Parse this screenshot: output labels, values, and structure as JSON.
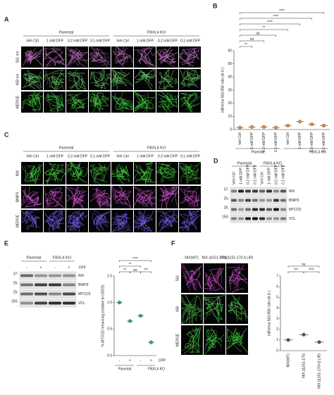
{
  "panels": {
    "a": {
      "label": "A",
      "groups": [
        "Parental",
        "FBXL4 KO"
      ],
      "columns": [
        "Veh Ctrl",
        "1 mM DFP",
        "0.2 mM DFP",
        "0.1 mM DFP",
        "Veh Ctrl",
        "1 mM DFP",
        "0.2 mM DFP",
        "0.1 mM DFP"
      ],
      "rows": [
        "561 nm",
        "458 nm",
        "MERGE"
      ]
    },
    "b": {
      "label": "B"
    },
    "c": {
      "label": "C",
      "groups": [
        "Parental",
        "FBXL4 KO"
      ],
      "columns": [
        "Veh Ctrl",
        "1 mM DFP",
        "0.2 mM DFP",
        "0.1 mM DFP",
        "Veh Ctrl",
        "1 mM DFP",
        "0.2 mM DFP",
        "0.1 mM DFP"
      ],
      "rows": [
        "NIX",
        "BNIP3",
        "MERGE"
      ]
    },
    "d": {
      "label": "D",
      "groups": [
        "Parental",
        "FBXL4 KO"
      ],
      "lanes": [
        "Veh Ctrl",
        "1 mM DFP",
        "0.2 mM DFP",
        "0.1 mM DFP",
        "Veh Ctrl",
        "1 mM DFP",
        "0.2 mM DFP",
        "0.1 mM DFP"
      ],
      "bands": [
        "NIX",
        "BNIP3",
        "MTCO2",
        "VCL"
      ],
      "markers": [
        "37-",
        "25-",
        "25-",
        "150-"
      ]
    },
    "e": {
      "label": "E",
      "groups": [
        "Parental",
        "FBXL4 KO"
      ],
      "treatment": "DFP",
      "lanes": [
        "-",
        "+",
        "-",
        "+"
      ],
      "bands": [
        "NIX",
        "BNIP3",
        "MTCO2",
        "VCL"
      ],
      "markers": [
        "37-",
        "25-",
        "25-",
        "150-"
      ]
    },
    "f": {
      "label": "F",
      "columns": [
        "NIX(WT)",
        "NIX (Δ151-170)",
        "NIX(Δ151-170 Δ LIR)"
      ],
      "rows": [
        "561",
        "458",
        "MERGE"
      ]
    }
  },
  "chart_data": [
    {
      "type": "dot",
      "y_label": "mtKeima 561/458 ratio (A.U.)",
      "categories": [
        "Veh Ctrl",
        "1 mM DFP",
        "0.2 mM DFP",
        "0.1 mM DFP",
        "Veh Ctrl",
        "1 mM DFP",
        "0.2 mM DFP",
        "0.1 mM DFP"
      ],
      "groups": [
        "Parental",
        "FBXL4 KO"
      ],
      "values": [
        1.5,
        2,
        2,
        1.5,
        3,
        6,
        4,
        3
      ],
      "color": "#e08a3c",
      "ylim": [
        0,
        60
      ],
      "yticks": [
        0,
        10,
        20,
        30,
        40,
        50,
        60
      ],
      "annotations": [
        "**",
        "ns",
        "ns",
        "**",
        "****",
        "****",
        "****"
      ]
    },
    {
      "type": "dot",
      "y_label": "% MTCO2 remaining (relative to U2OS)",
      "categories": [
        "-",
        "+",
        "-",
        "+"
      ],
      "x_label": "DFP",
      "groups": [
        "Parental",
        "FBXL4 KO"
      ],
      "values": [
        1.0,
        0.65,
        0.75,
        0.25
      ],
      "color": "#3a9a8a",
      "ylim": [
        0,
        1.5
      ],
      "yticks": [
        {
          "value": 0,
          "label": "0.0"
        },
        {
          "value": 0.5,
          "label": "0.5"
        },
        {
          "value": 1,
          "label": "1.0"
        },
        {
          "value": 1.5,
          "label": "1.5"
        }
      ],
      "annotations": [
        "**",
        "ns",
        "***",
        "**",
        "****"
      ]
    },
    {
      "type": "dot",
      "y_label": "mtKeima 561/458 ratio (A.U.)",
      "categories": [
        "NIX(WT)",
        "NIX (Δ151-170)",
        "NIX (Δ151-170+Δ LIR)"
      ],
      "values": [
        1,
        1.5,
        0.8
      ],
      "color": "#555555",
      "ylim": [
        0,
        7
      ],
      "yticks": [
        0,
        1,
        2,
        3,
        4,
        5,
        6,
        7
      ],
      "annotations": [
        "***",
        "****",
        "ns"
      ]
    }
  ]
}
